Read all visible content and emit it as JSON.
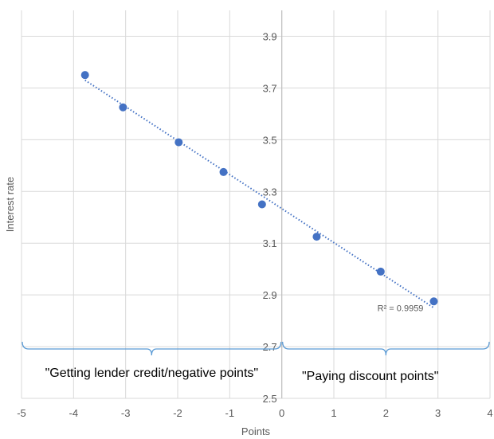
{
  "chart_data": {
    "type": "scatter",
    "xlabel": "Points",
    "ylabel": "Interest rate",
    "xlim": [
      -5,
      4
    ],
    "ylim": [
      2.5,
      4.0
    ],
    "x_ticks": [
      "-5",
      "-4",
      "-3",
      "-2",
      "-1",
      "0",
      "1",
      "2",
      "3",
      "4"
    ],
    "y_ticks": [
      "2.5",
      "2.7",
      "2.9",
      "3.1",
      "3.3",
      "3.5",
      "3.7",
      "3.9"
    ],
    "grid": true,
    "series": [
      {
        "x": [
          -3.78,
          -3.05,
          -1.98,
          -1.12,
          -0.38,
          0.67,
          1.9,
          2.92
        ],
        "y": [
          3.75,
          3.625,
          3.49,
          3.375,
          3.25,
          3.125,
          2.99,
          2.875
        ]
      }
    ],
    "trendline": {
      "type": "linear",
      "style": "dotted",
      "x_range": [
        -3.78,
        2.92
      ],
      "y_range": [
        3.73,
        2.85
      ],
      "r_squared_label": "R² = 0.9959"
    },
    "annotations": [
      {
        "text": "\"Getting lender credit/negative points\"",
        "x_range": [
          -5,
          0
        ]
      },
      {
        "text": "\"Paying discount points\"",
        "x_range": [
          0,
          4
        ]
      }
    ],
    "colors": {
      "marker": "#4472c4",
      "brace": "#5b9bd5",
      "grid": "#d9d9d9",
      "axis": "#bfbfbf"
    }
  }
}
